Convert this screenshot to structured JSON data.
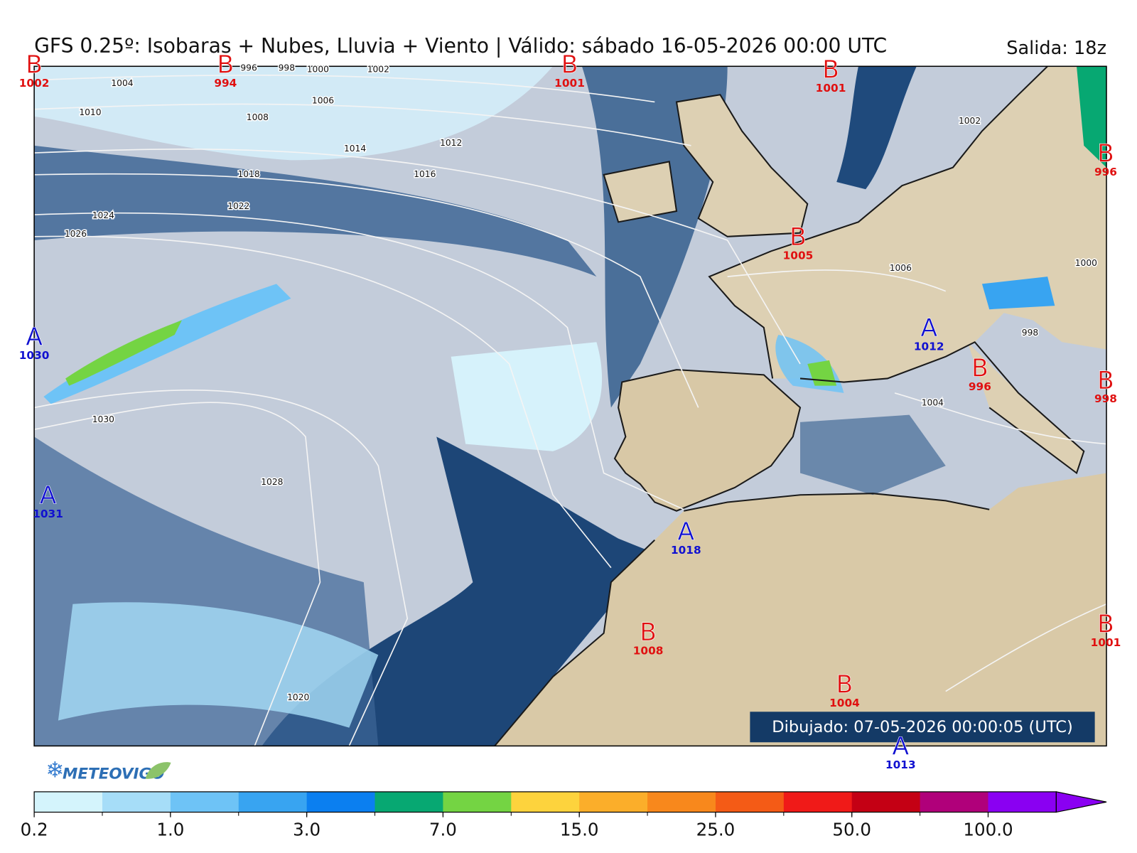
{
  "title": "GFS 0.25º: Isobaras + Nubes, Lluvia + Viento | Válido: sábado 16-05-2026 00:00 UTC",
  "run": "Salida: 18z",
  "drawn": "Dibujado: 07-05-2026 00:00:05 (UTC)",
  "logo": "METEOVIGO",
  "pressure_centers": [
    {
      "letter": "B",
      "value": 1002
    },
    {
      "letter": "B",
      "value": 994
    },
    {
      "letter": "B",
      "value": 1001
    },
    {
      "letter": "B",
      "value": 1001
    },
    {
      "letter": "B",
      "value": 996
    },
    {
      "letter": "B",
      "value": 1005
    },
    {
      "letter": "A",
      "value": 1030
    },
    {
      "letter": "A",
      "value": 1012
    },
    {
      "letter": "B",
      "value": 996
    },
    {
      "letter": "B",
      "value": 998
    },
    {
      "letter": "A",
      "value": 1031
    },
    {
      "letter": "A",
      "value": 1018
    },
    {
      "letter": "B",
      "value": 1008
    },
    {
      "letter": "B",
      "value": 1004
    },
    {
      "letter": "B",
      "value": 1001
    },
    {
      "letter": "A",
      "value": 1013
    }
  ],
  "isobar_labels": [
    1004,
    996,
    998,
    1000,
    1002,
    1010,
    1006,
    1008,
    1012,
    1014,
    1018,
    1016,
    1024,
    1022,
    1026,
    1030,
    1028,
    1020,
    1006,
    1000,
    1004,
    1002,
    998
  ],
  "colorbar": {
    "colors": [
      "#d4f4fc",
      "#a6ddf8",
      "#6ec3f6",
      "#38a4f1",
      "#0b7ff0",
      "#07a872",
      "#74d443",
      "#fdd33d",
      "#fbae2a",
      "#f8881c",
      "#f45b16",
      "#f01a18",
      "#c40014",
      "#b0007a",
      "#8a00f2"
    ],
    "ticks": [
      0.2,
      {
        "value": 1,
        "label": "1.0"
      },
      {
        "value": 3,
        "label": "3.0"
      },
      {
        "value": 7,
        "label": "7.0"
      },
      {
        "value": 15,
        "label": "15.0"
      },
      {
        "value": 25,
        "label": "25.0"
      },
      {
        "value": 50,
        "label": "50.0"
      },
      {
        "value": 100,
        "label": "100.0"
      }
    ]
  }
}
